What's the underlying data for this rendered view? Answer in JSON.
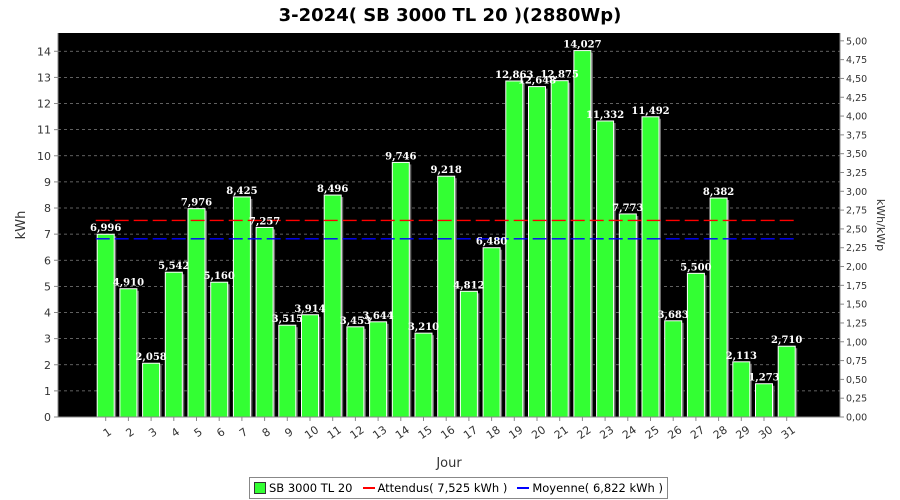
{
  "chart_data": {
    "type": "bar",
    "title": "3-2024( SB 3000 TL 20 )(2880Wp)",
    "xlabel": "Jour",
    "ylabel": "kWh",
    "ylabel_right": "kWh/kWp",
    "ylim": [
      0,
      14.7
    ],
    "yticks": [
      "0",
      "1",
      "2",
      "3",
      "4",
      "5",
      "6",
      "7",
      "8",
      "9",
      "10",
      "11",
      "12",
      "13",
      "14"
    ],
    "ylim_right": [
      0,
      5.104
    ],
    "yticks_right": [
      "0,00",
      "0,25",
      "0,50",
      "0,75",
      "1,00",
      "1,25",
      "1,50",
      "1,75",
      "2,00",
      "2,25",
      "2,50",
      "2,75",
      "3,00",
      "3,25",
      "3,50",
      "3,75",
      "4,00",
      "4,25",
      "4,50",
      "4,75",
      "5,00"
    ],
    "categories": [
      "1",
      "2",
      "3",
      "4",
      "5",
      "6",
      "7",
      "8",
      "9",
      "10",
      "11",
      "12",
      "13",
      "14",
      "15",
      "16",
      "17",
      "18",
      "19",
      "20",
      "21",
      "22",
      "23",
      "24",
      "25",
      "26",
      "27",
      "28",
      "29",
      "30",
      "31"
    ],
    "series": [
      {
        "name": "SB 3000 TL 20",
        "color": "#33ff33",
        "values": [
          6.996,
          4.91,
          2.058,
          5.542,
          7.976,
          5.16,
          8.425,
          7.257,
          3.515,
          3.914,
          8.496,
          3.453,
          3.644,
          9.746,
          3.21,
          9.218,
          4.812,
          6.48,
          12.863,
          12.648,
          12.875,
          14.027,
          11.332,
          7.773,
          11.492,
          3.683,
          5.5,
          8.382,
          2.113,
          1.273,
          2.71
        ],
        "labels": [
          "6,996",
          "4,910",
          "2,058",
          "5,542",
          "7,976",
          "5,160",
          "8,425",
          "7,257",
          "3,515",
          "3,914",
          "8,496",
          "3,453",
          "3,644",
          "9,746",
          "3,210",
          "9,218",
          "4,812",
          "6,480",
          "12,863",
          "12,648",
          "12,875",
          "14,027",
          "11,332",
          "7,773",
          "11,492",
          "3,683",
          "5,500",
          "8,382",
          "2,113",
          "1,273",
          "2,710"
        ]
      }
    ],
    "reference_lines": [
      {
        "name": "Attendus",
        "value": 7.525,
        "color": "#ff0000"
      },
      {
        "name": "Moyenne",
        "value": 6.822,
        "color": "#0000ff"
      }
    ],
    "background": "#000000",
    "grid": true,
    "legend_position": "bottom-center"
  },
  "legend": {
    "bars": "SB 3000 TL 20",
    "expected": "Attendus( 7,525 kWh )",
    "average": "Moyenne( 6,822 kWh )"
  }
}
